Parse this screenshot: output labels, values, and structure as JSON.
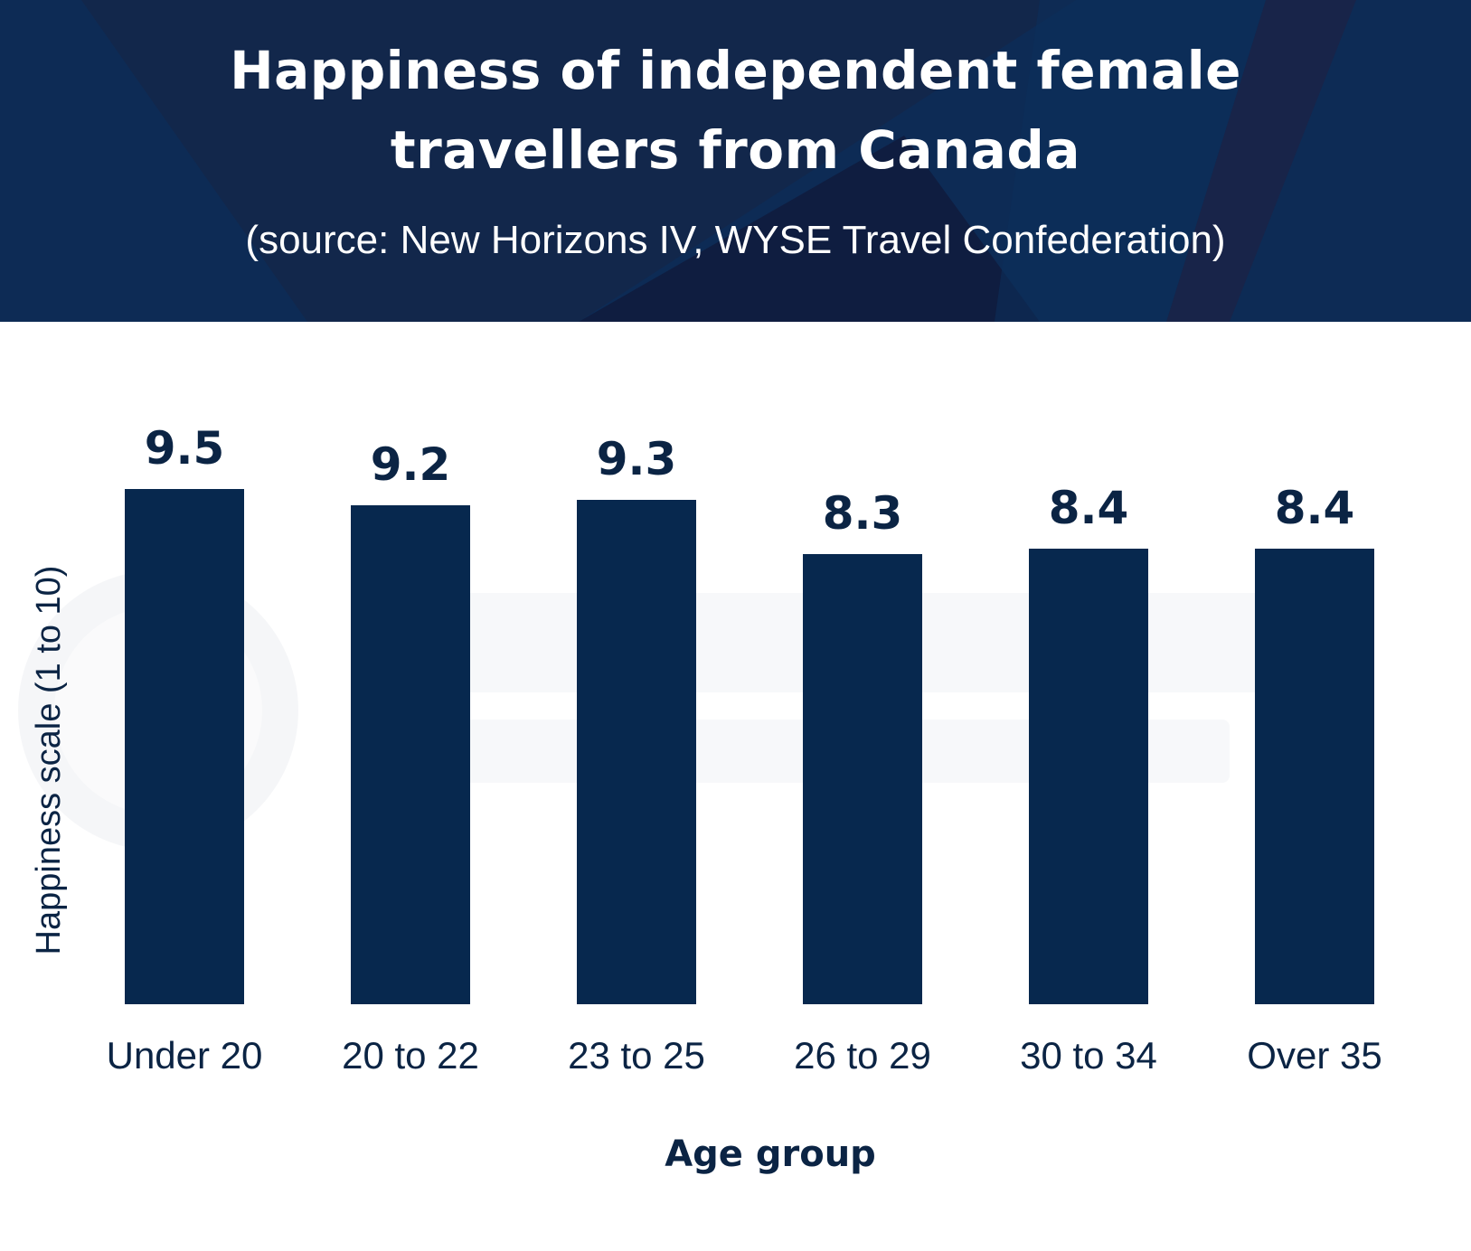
{
  "header": {
    "title": "Happiness of independent female travellers from Canada",
    "subtitle": "(source: New Horizons IV, WYSE Travel Confederation)"
  },
  "colors": {
    "header_background": "#0d2b55",
    "bar": "#07284e",
    "text": "#0b2444",
    "watermark": "#e6e9ee"
  },
  "chart_data": {
    "type": "bar",
    "title": "Happiness of independent female travellers from Canada",
    "subtitle": "(source: New Horizons IV, WYSE Travel Confederation)",
    "categories": [
      "Under 20",
      "20 to 22",
      "23 to 25",
      "26 to 29",
      "30 to 34",
      "Over 35"
    ],
    "values": [
      9.5,
      9.2,
      9.3,
      8.3,
      8.4,
      8.4
    ],
    "value_labels": [
      "9.5",
      "9.2",
      "9.3",
      "8.3",
      "8.4",
      "8.4"
    ],
    "xlabel": "Age group",
    "ylabel": "Happiness scale (1 to 10)",
    "ylim": [
      0,
      10
    ],
    "grid": false,
    "legend": "none"
  }
}
